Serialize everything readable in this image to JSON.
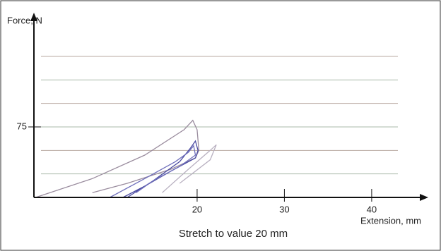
{
  "chart_data": {
    "type": "line",
    "y_label": "Force, N",
    "x_label": "Extension, mm",
    "caption": "Stretch to value 20 mm",
    "xlim": [
      1.3,
      46
    ],
    "xticks": [
      20,
      30,
      40
    ],
    "ylim": [
      0,
      180
    ],
    "yticks": [
      75
    ],
    "grid": true,
    "grid_values": [
      25,
      50,
      75,
      100,
      125,
      150
    ],
    "series": [
      {
        "color": "#9a8c9e",
        "x": [
          1.5,
          8,
          14,
          18.5,
          19.5,
          20,
          20.2,
          19.8,
          17,
          12,
          8
        ],
        "values": [
          0,
          20,
          45,
          72,
          82,
          72,
          50,
          42,
          30,
          15,
          5
        ]
      },
      {
        "color": "#4a4aa0",
        "x": [
          12,
          15,
          18,
          19.2,
          19.8,
          20.1,
          19.8,
          17,
          14,
          11.5
        ],
        "values": [
          0,
          18,
          38,
          52,
          60,
          50,
          42,
          28,
          12,
          0
        ]
      },
      {
        "color": "#7070bc",
        "x": [
          10,
          14,
          17.5,
          19,
          19.6,
          19.8,
          18,
          15,
          13
        ],
        "values": [
          0,
          20,
          38,
          48,
          55,
          45,
          33,
          18,
          5
        ]
      },
      {
        "color": "#b8b0c0",
        "x": [
          16,
          19,
          21.5,
          22.2,
          21.5,
          18
        ],
        "values": [
          5,
          30,
          50,
          56,
          40,
          15
        ]
      }
    ]
  }
}
